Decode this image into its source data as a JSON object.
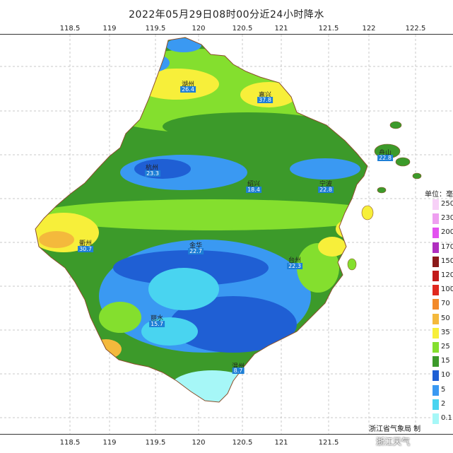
{
  "title": "2022年05月29日08时00分近24小时降水",
  "x_ticks": [
    "118.5",
    "119",
    "119.5",
    "120",
    "120.5",
    "121",
    "121.5",
    "122",
    "122.5"
  ],
  "legend": {
    "title": "单位：毫",
    "items": [
      {
        "label": "250",
        "color": "#f7d0f7"
      },
      {
        "label": "230",
        "color": "#ee9ff0"
      },
      {
        "label": "200",
        "color": "#e351f0"
      },
      {
        "label": "170",
        "color": "#b02fbf"
      },
      {
        "label": "150",
        "color": "#8b1a1a"
      },
      {
        "label": "120",
        "color": "#c21a1a"
      },
      {
        "label": "100",
        "color": "#e0281e"
      },
      {
        "label": "70",
        "color": "#f2892a"
      },
      {
        "label": "50",
        "color": "#f4b93c"
      },
      {
        "label": "35",
        "color": "#f7ef3a"
      },
      {
        "label": "25",
        "color": "#84df2e"
      },
      {
        "label": "15",
        "color": "#3c9a2a"
      },
      {
        "label": "10",
        "color": "#1f5fd4"
      },
      {
        "label": "5",
        "color": "#3a99f2"
      },
      {
        "label": "2",
        "color": "#49d4f0"
      },
      {
        "label": "0.1",
        "color": "#a6f7f7"
      }
    ]
  },
  "cities": [
    {
      "name": "湖州",
      "value": "26.4"
    },
    {
      "name": "嘉兴",
      "value": "37.8"
    },
    {
      "name": "杭州",
      "value": "23.3"
    },
    {
      "name": "绍兴",
      "value": "18.4"
    },
    {
      "name": "宁波",
      "value": "22.8"
    },
    {
      "name": "舟山",
      "value": "22.8"
    },
    {
      "name": "金华",
      "value": "22.7"
    },
    {
      "name": "衢州",
      "value": "30.7"
    },
    {
      "name": "台州",
      "value": "22.3"
    },
    {
      "name": "丽水",
      "value": "15.7"
    },
    {
      "name": "温州",
      "value": "8.7"
    }
  ],
  "footer": {
    "agency": "浙江省气象局 制",
    "watermark": "浙江天气"
  }
}
